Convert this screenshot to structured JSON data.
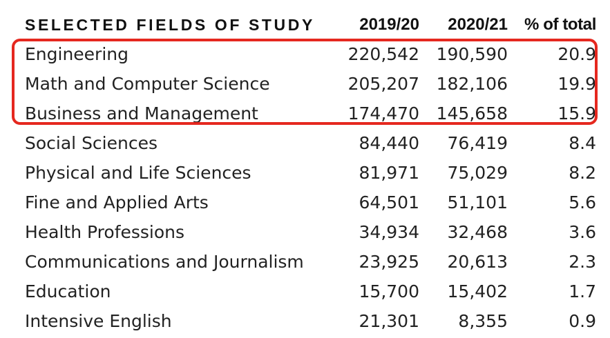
{
  "chart_data": {
    "type": "table",
    "columns": [
      "SELECTED FIELDS OF STUDY",
      "2019/20",
      "2020/21",
      "% of total"
    ],
    "rows": [
      {
        "field": "Engineering",
        "y2019_20": "220,542",
        "y2020_21": "190,590",
        "pct": "20.9"
      },
      {
        "field": "Math and Computer Science",
        "y2019_20": "205,207",
        "y2020_21": "182,106",
        "pct": "19.9"
      },
      {
        "field": "Business and Management",
        "y2019_20": "174,470",
        "y2020_21": "145,658",
        "pct": "15.9"
      },
      {
        "field": "Social Sciences",
        "y2019_20": "84,440",
        "y2020_21": "76,419",
        "pct": "8.4"
      },
      {
        "field": "Physical and Life Sciences",
        "y2019_20": "81,971",
        "y2020_21": "75,029",
        "pct": "8.2"
      },
      {
        "field": "Fine and Applied Arts",
        "y2019_20": "64,501",
        "y2020_21": "51,101",
        "pct": "5.6"
      },
      {
        "field": "Health Professions",
        "y2019_20": "34,934",
        "y2020_21": "32,468",
        "pct": "3.6"
      },
      {
        "field": "Communications and Journalism",
        "y2019_20": "23,925",
        "y2020_21": "20,613",
        "pct": "2.3"
      },
      {
        "field": "Education",
        "y2019_20": "15,700",
        "y2020_21": "15,402",
        "pct": "1.7"
      },
      {
        "field": "Intensive English",
        "y2019_20": "21,301",
        "y2020_21": "8,355",
        "pct": "0.9"
      }
    ],
    "highlighted_rows": [
      0,
      1,
      2
    ],
    "highlight_color": "#e5281f"
  }
}
